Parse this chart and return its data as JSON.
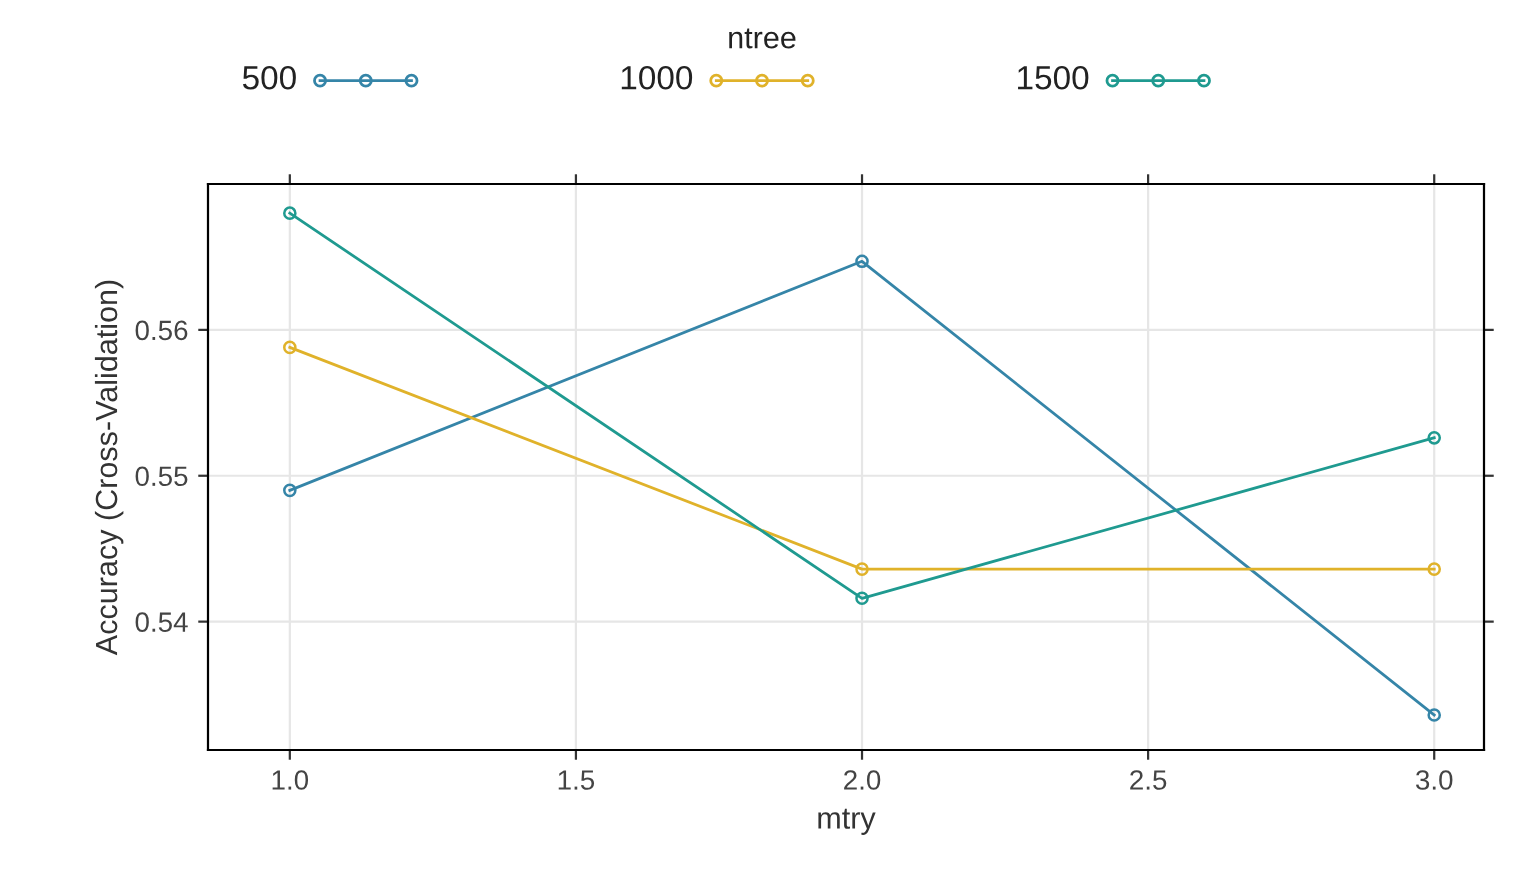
{
  "chart_data": {
    "type": "line",
    "xlabel": "mtry",
    "ylabel": "Accuracy (Cross-Validation)",
    "legend_title": "ntree",
    "legend": "top",
    "grid": true,
    "marker": "circle",
    "line_style": "solid",
    "x": [
      1.0,
      2.0,
      3.0
    ],
    "xlim": [
      0.857,
      3.087
    ],
    "ylim": [
      0.5312,
      0.57
    ],
    "xticks": [
      {
        "value": 1.0,
        "label": "1.0"
      },
      {
        "value": 1.5,
        "label": "1.5"
      },
      {
        "value": 2.0,
        "label": "2.0"
      },
      {
        "value": 2.5,
        "label": "2.5"
      },
      {
        "value": 3.0,
        "label": "3.0"
      }
    ],
    "yticks": [
      0.54,
      0.55,
      0.56
    ],
    "series": [
      {
        "name": "500",
        "color": "#3585a8",
        "values": [
          0.549,
          0.5647,
          0.5336
        ]
      },
      {
        "name": "1000",
        "color": "#e0b22a",
        "values": [
          0.5588,
          0.5436,
          0.5436
        ]
      },
      {
        "name": "1500",
        "color": "#1f9a90",
        "values": [
          0.568,
          0.5416,
          0.5526
        ]
      }
    ]
  }
}
